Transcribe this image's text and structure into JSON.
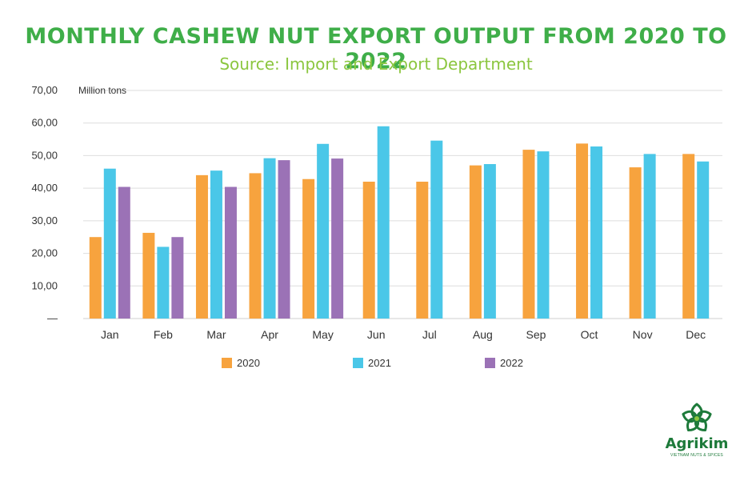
{
  "chart_data": {
    "type": "bar",
    "title": "MONTHLY CASHEW NUT EXPORT OUTPUT FROM 2020 TO 2022",
    "subtitle": "Source: Import and Export Department",
    "ylabel": "Million tons",
    "ylim": [
      0,
      70
    ],
    "yticks": [
      {
        "value": 0,
        "label": "—"
      },
      {
        "value": 10,
        "label": "10,00"
      },
      {
        "value": 20,
        "label": "20,00"
      },
      {
        "value": 30,
        "label": "30,00"
      },
      {
        "value": 40,
        "label": "40,00"
      },
      {
        "value": 50,
        "label": "50,00"
      },
      {
        "value": 60,
        "label": "60,00"
      },
      {
        "value": 70,
        "label": "70,00"
      }
    ],
    "grid": true,
    "legend_position": "bottom",
    "categories": [
      "Jan",
      "Feb",
      "Mar",
      "Apr",
      "May",
      "Jun",
      "Jul",
      "Aug",
      "Sep",
      "Oct",
      "Nov",
      "Dec"
    ],
    "series": [
      {
        "name": "2020",
        "color": "#f7a33e",
        "values": [
          25,
          26.3,
          44,
          44.6,
          42.8,
          42,
          42,
          47,
          51.8,
          53.7,
          46.4,
          50.5
        ]
      },
      {
        "name": "2021",
        "color": "#4ac7e8",
        "values": [
          46,
          22,
          45.4,
          49.2,
          53.6,
          59,
          54.6,
          47.4,
          51.3,
          52.8,
          50.5,
          48.2
        ]
      },
      {
        "name": "2022",
        "color": "#9b72b6",
        "values": [
          40.4,
          25,
          40.4,
          48.6,
          49.1,
          null,
          null,
          null,
          null,
          null,
          null,
          null
        ]
      }
    ]
  },
  "logo": {
    "name": "Agrikim",
    "tagline": "VIETNAM NUTS & SPICES",
    "color": "#1d7a3a"
  }
}
